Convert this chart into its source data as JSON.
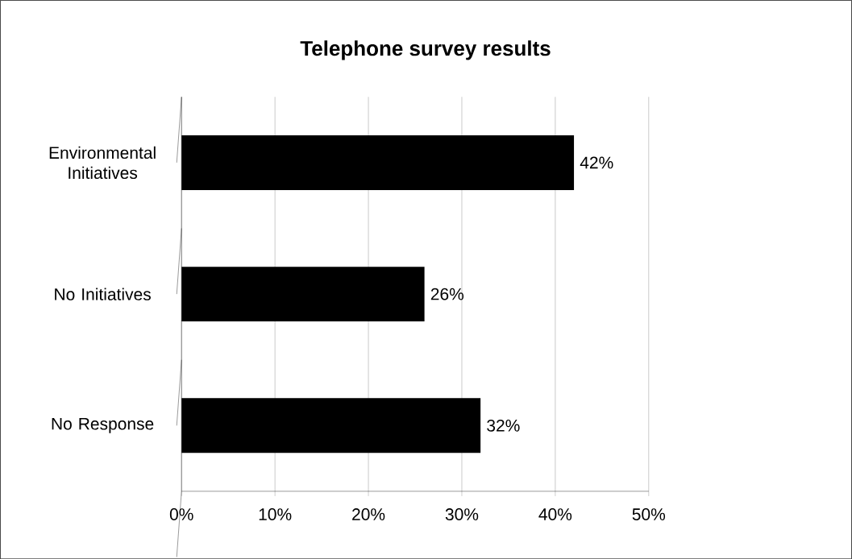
{
  "chart_data": {
    "type": "bar",
    "orientation": "horizontal",
    "title": "Telephone survey results",
    "categories": [
      "Environmental Initiatives",
      "No Initiatives",
      "No Response"
    ],
    "values": [
      42,
      26,
      32
    ],
    "value_labels": [
      "42%",
      "26%",
      "32%"
    ],
    "color": "#000000",
    "xlim": [
      0,
      50
    ],
    "xticks": [
      {
        "value": 0,
        "label": "0%"
      },
      {
        "value": 10,
        "label": "10%"
      },
      {
        "value": 20,
        "label": "20%"
      },
      {
        "value": 30,
        "label": "30%"
      },
      {
        "value": 40,
        "label": "40%"
      },
      {
        "value": 50,
        "label": "50%"
      }
    ],
    "grid": "x"
  }
}
